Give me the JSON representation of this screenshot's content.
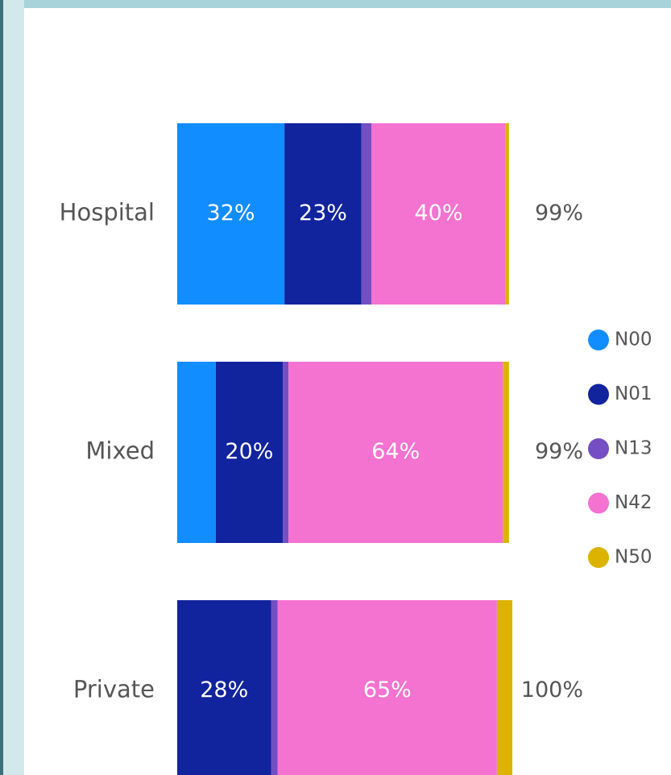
{
  "chart_data": {
    "type": "stacked_hbar",
    "categories": [
      "Hospital",
      "Mixed",
      "Private"
    ],
    "series": [
      {
        "name": "N00",
        "color": "#118dff",
        "values": [
          32,
          11.5,
          0
        ],
        "value_labels": [
          "32%",
          null,
          null
        ]
      },
      {
        "name": "N01",
        "color": "#12239e",
        "values": [
          23,
          20,
          28
        ],
        "value_labels": [
          "23%",
          "20%",
          "28%"
        ]
      },
      {
        "name": "N13",
        "color": "#744ec2",
        "values": [
          3,
          1.7,
          2
        ],
        "value_labels": [
          null,
          null,
          null
        ]
      },
      {
        "name": "N42",
        "color": "#f472d0",
        "values": [
          40,
          64,
          65.4
        ],
        "value_labels": [
          "40%",
          "64%",
          "65%"
        ]
      },
      {
        "name": "N50",
        "color": "#dcb300",
        "values": [
          1,
          1.8,
          4.6
        ],
        "value_labels": [
          null,
          null,
          null
        ]
      }
    ],
    "totals": [
      99,
      99,
      100
    ],
    "total_labels": [
      "99%",
      "99%",
      "100%"
    ],
    "xlim": [
      0,
      100
    ]
  }
}
